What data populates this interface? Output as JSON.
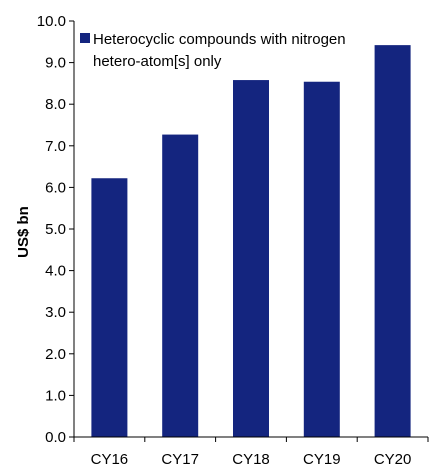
{
  "chart_data": {
    "type": "bar",
    "categories": [
      "CY16",
      "CY17",
      "CY18",
      "CY19",
      "CY20"
    ],
    "series": [
      {
        "name": "Heterocyclic compounds with nitrogen hetero-atom[s] only",
        "values": [
          6.22,
          7.27,
          8.58,
          8.54,
          9.42
        ],
        "color": "#14257f"
      }
    ],
    "ylabel": "US$ bn",
    "xlabel": "",
    "ylim": [
      0,
      10
    ],
    "yticks": [
      "0.0",
      "1.0",
      "2.0",
      "3.0",
      "4.0",
      "5.0",
      "6.0",
      "7.0",
      "8.0",
      "9.0",
      "10.0"
    ],
    "legend": {
      "line1": "Heterocyclic compounds with nitrogen",
      "line2": "hetero-atom[s] only",
      "position": "top"
    },
    "grid": false
  }
}
